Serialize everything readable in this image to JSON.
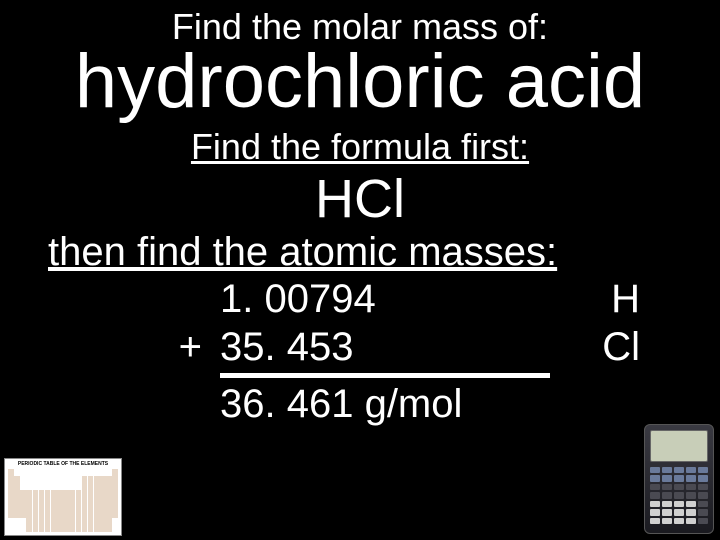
{
  "title": "Find the molar mass of:",
  "compound": "hydrochloric acid",
  "step1": "Find the formula first:",
  "formula": "HCl",
  "step2": "then find the atomic masses:",
  "masses": {
    "h": {
      "value": "1. 00794",
      "symbol": "H"
    },
    "cl": {
      "value": "35. 453",
      "symbol": "Cl"
    },
    "plus": "+"
  },
  "result": "36. 461 g/mol",
  "colors": {
    "background": "#000000",
    "text": "#ffffff"
  },
  "periodic_title": "PERIODIC TABLE OF THE ELEMENTS"
}
